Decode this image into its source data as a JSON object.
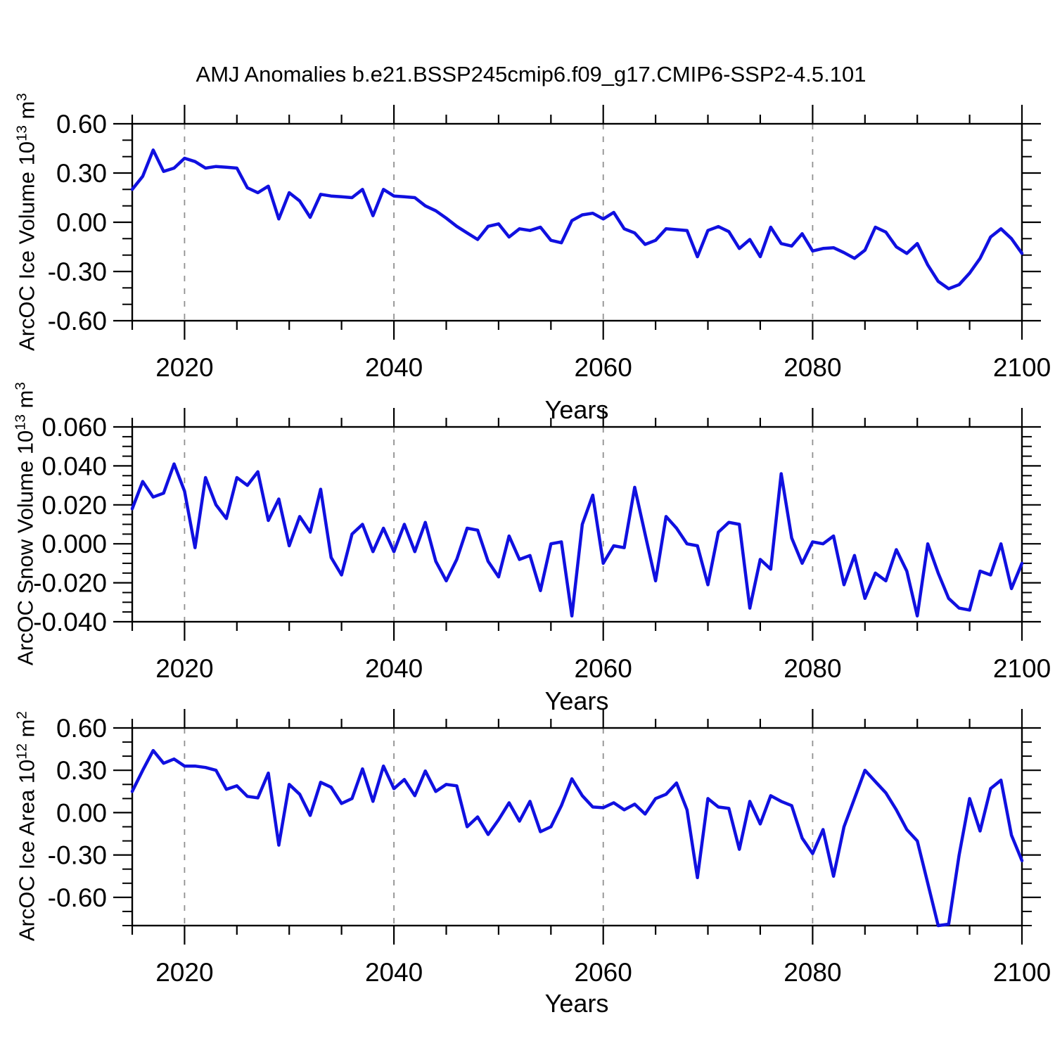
{
  "title": "AMJ Anomalies b.e21.BSSP245cmip6.f09_g17.CMIP6-SSP2-4.5.101",
  "xlabel": "Years",
  "colors": {
    "line": "#1010e0",
    "frame": "#000000",
    "grid": "#909090",
    "text": "#000000",
    "background": "#ffffff"
  },
  "chart_data": [
    {
      "type": "line",
      "panel": 1,
      "ylabel": "ArcOC Ice Volume 10^13 m^3",
      "ylabel_segments": [
        [
          "ArcOC Ice Volume 10",
          false
        ],
        [
          "13",
          true
        ],
        [
          " m",
          false
        ],
        [
          "3",
          true
        ]
      ],
      "xlabel": "Years",
      "x_start": 2015,
      "x_end": 2100,
      "x_step": 1,
      "ylim": [
        -0.6,
        0.6
      ],
      "y_major": [
        {
          "v": 0.6,
          "label": "0.60"
        },
        {
          "v": 0.3,
          "label": "0.30"
        },
        {
          "v": 0.0,
          "label": "0.00"
        },
        {
          "v": -0.3,
          "label": "-0.30"
        },
        {
          "v": -0.6,
          "label": "-0.60"
        }
      ],
      "y_minor_step": 0.1,
      "x_major_ticks": [
        2020,
        2040,
        2060,
        2080,
        2100
      ],
      "x_minor_step": 5,
      "gridlines": [
        2020,
        2040,
        2060,
        2080
      ],
      "values": [
        0.2,
        0.28,
        0.44,
        0.31,
        0.33,
        0.39,
        0.37,
        0.33,
        0.34,
        0.335,
        0.33,
        0.21,
        0.18,
        0.22,
        0.02,
        0.18,
        0.13,
        0.03,
        0.17,
        0.16,
        0.155,
        0.15,
        0.2,
        0.04,
        0.2,
        0.16,
        0.155,
        0.15,
        0.1,
        0.07,
        0.025,
        -0.025,
        -0.065,
        -0.105,
        -0.025,
        -0.01,
        -0.09,
        -0.04,
        -0.05,
        -0.03,
        -0.11,
        -0.125,
        0.01,
        0.045,
        0.055,
        0.02,
        0.06,
        -0.04,
        -0.065,
        -0.135,
        -0.11,
        -0.04,
        -0.045,
        -0.05,
        -0.21,
        -0.05,
        -0.026,
        -0.057,
        -0.16,
        -0.105,
        -0.21,
        -0.03,
        -0.13,
        -0.145,
        -0.07,
        -0.175,
        -0.16,
        -0.155,
        -0.185,
        -0.22,
        -0.17,
        -0.03,
        -0.06,
        -0.15,
        -0.19,
        -0.13,
        -0.26,
        -0.36,
        -0.405,
        -0.38,
        -0.31,
        -0.22,
        -0.09,
        -0.04,
        -0.1,
        -0.19
      ]
    },
    {
      "type": "line",
      "panel": 2,
      "ylabel": "ArcOC Snow Volume 10^13 m^3",
      "ylabel_segments": [
        [
          "ArcOC Snow Volume 10",
          false
        ],
        [
          "13",
          true
        ],
        [
          " m",
          false
        ],
        [
          "3",
          true
        ]
      ],
      "xlabel": "Years",
      "x_start": 2015,
      "x_end": 2100,
      "x_step": 1,
      "ylim": [
        -0.04,
        0.06
      ],
      "y_major": [
        {
          "v": 0.06,
          "label": "0.060"
        },
        {
          "v": 0.04,
          "label": "0.040"
        },
        {
          "v": 0.02,
          "label": "0.020"
        },
        {
          "v": 0.0,
          "label": "0.000"
        },
        {
          "v": -0.02,
          "label": "-0.020"
        },
        {
          "v": -0.04,
          "label": "-0.040"
        }
      ],
      "y_minor_step": 0.005,
      "x_major_ticks": [
        2020,
        2040,
        2060,
        2080,
        2100
      ],
      "x_minor_step": 5,
      "gridlines": [
        2020,
        2040,
        2060,
        2080
      ],
      "values": [
        0.018,
        0.032,
        0.024,
        0.026,
        0.041,
        0.027,
        -0.002,
        0.034,
        0.02,
        0.013,
        0.034,
        0.03,
        0.037,
        0.012,
        0.023,
        -0.001,
        0.014,
        0.006,
        0.028,
        -0.007,
        -0.016,
        0.005,
        0.01,
        -0.004,
        0.008,
        -0.004,
        0.01,
        -0.004,
        0.011,
        -0.009,
        -0.019,
        -0.008,
        0.008,
        0.007,
        -0.009,
        -0.017,
        0.004,
        -0.008,
        -0.006,
        -0.024,
        0.0,
        0.001,
        -0.037,
        0.01,
        0.025,
        -0.01,
        -0.001,
        -0.002,
        0.029,
        0.005,
        -0.019,
        0.014,
        0.008,
        0.0,
        -0.001,
        -0.021,
        0.006,
        0.011,
        0.01,
        -0.033,
        -0.008,
        -0.013,
        0.036,
        0.003,
        -0.01,
        0.001,
        0.0,
        0.004,
        -0.021,
        -0.006,
        -0.028,
        -0.015,
        -0.019,
        -0.003,
        -0.014,
        -0.037,
        0.0,
        -0.015,
        -0.028,
        -0.033,
        -0.034,
        -0.014,
        -0.016,
        0.0,
        -0.023,
        -0.01
      ]
    },
    {
      "type": "line",
      "panel": 3,
      "ylabel": "ArcOC Ice Area 10^12 m^2",
      "ylabel_segments": [
        [
          "ArcOC Ice Area 10",
          false
        ],
        [
          "12",
          true
        ],
        [
          " m",
          false
        ],
        [
          "2",
          true
        ]
      ],
      "xlabel": "Years",
      "x_start": 2015,
      "x_end": 2100,
      "x_step": 1,
      "ylim": [
        -0.8,
        0.6
      ],
      "y_major": [
        {
          "v": 0.6,
          "label": "0.60"
        },
        {
          "v": 0.3,
          "label": "0.30"
        },
        {
          "v": 0.0,
          "label": "0.00"
        },
        {
          "v": -0.3,
          "label": "-0.30"
        },
        {
          "v": -0.6,
          "label": "-0.60"
        }
      ],
      "y_minor_step": 0.1,
      "x_major_ticks": [
        2020,
        2040,
        2060,
        2080,
        2100
      ],
      "x_minor_step": 5,
      "gridlines": [
        2020,
        2040,
        2060,
        2080
      ],
      "values": [
        0.15,
        0.3,
        0.44,
        0.35,
        0.38,
        0.33,
        0.33,
        0.32,
        0.3,
        0.165,
        0.19,
        0.115,
        0.105,
        0.28,
        -0.23,
        0.2,
        0.13,
        -0.02,
        0.215,
        0.18,
        0.065,
        0.1,
        0.31,
        0.08,
        0.33,
        0.17,
        0.235,
        0.12,
        0.295,
        0.15,
        0.2,
        0.19,
        -0.1,
        -0.03,
        -0.155,
        -0.05,
        0.07,
        -0.06,
        0.08,
        -0.135,
        -0.1,
        0.05,
        0.24,
        0.12,
        0.04,
        0.035,
        0.07,
        0.02,
        0.06,
        -0.01,
        0.1,
        0.13,
        0.21,
        0.02,
        -0.46,
        0.1,
        0.04,
        0.03,
        -0.26,
        0.08,
        -0.08,
        0.12,
        0.08,
        0.05,
        -0.18,
        -0.29,
        -0.12,
        -0.45,
        -0.1,
        0.1,
        0.3,
        0.22,
        0.14,
        0.02,
        -0.12,
        -0.2,
        -0.5,
        -0.8,
        -0.79,
        -0.3,
        0.1,
        -0.13,
        0.17,
        0.23,
        -0.16,
        -0.34
      ]
    }
  ]
}
